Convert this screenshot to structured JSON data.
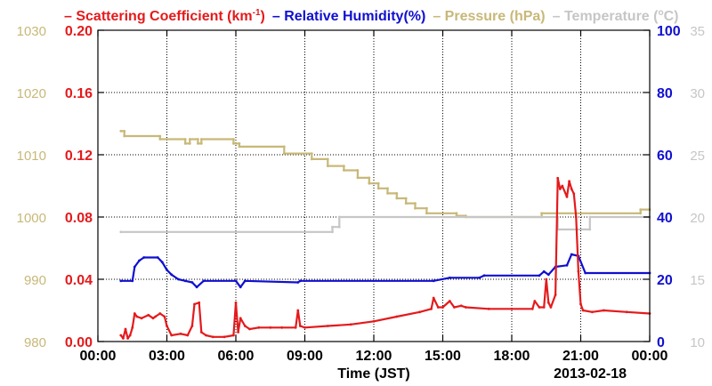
{
  "chart_data": {
    "type": "line",
    "legend": {
      "placement": "top",
      "entries": [
        {
          "key": "scattering",
          "label_main": "Scattering Coefficient (km",
          "label_sup": "-1",
          "label_end": ")"
        },
        {
          "key": "rh",
          "label_main": "Relative Humidity(%)",
          "label_sup": "",
          "label_end": ""
        },
        {
          "key": "pressure",
          "label_main": "Pressure (hPa)",
          "label_sup": "",
          "label_end": ""
        },
        {
          "key": "temperature",
          "label_main": "Temperature (",
          "label_sup": "o",
          "label_end": "C)"
        }
      ]
    },
    "xlabel": "Time (JST)",
    "date_label": "2013-02-18",
    "x_unit": "hours",
    "xlim": [
      0,
      24
    ],
    "x_ticks": [
      0,
      3,
      6,
      9,
      12,
      15,
      18,
      21,
      24
    ],
    "x_tick_labels": [
      "00:00",
      "03:00",
      "06:00",
      "09:00",
      "12:00",
      "15:00",
      "18:00",
      "21:00",
      "00:00"
    ],
    "grid": true,
    "axes": {
      "pressure": {
        "side": "left-outer",
        "ylim": [
          980,
          1030
        ],
        "ticks": [
          980,
          990,
          1000,
          1010,
          1020,
          1030
        ]
      },
      "scattering": {
        "side": "left-inner",
        "ylim": [
          0.0,
          0.2
        ],
        "ticks": [
          0.0,
          0.04,
          0.08,
          0.12,
          0.16,
          0.2
        ],
        "tick_labels": [
          "0.00",
          "0.04",
          "0.08",
          "0.12",
          "0.16",
          "0.20"
        ]
      },
      "rh": {
        "side": "right-inner",
        "ylim": [
          0,
          100
        ],
        "ticks": [
          0,
          20,
          40,
          60,
          80,
          100
        ]
      },
      "temperature": {
        "side": "right-outer",
        "ylim": [
          10,
          35
        ],
        "ticks": [
          10,
          15,
          20,
          25,
          30,
          35
        ]
      }
    },
    "colors": {
      "scattering": "#e41a1c",
      "rh": "#1010d0",
      "pressure": "#c8b878",
      "temperature": "#c6c6c6",
      "grid": "#000000"
    },
    "series": [
      {
        "key": "pressure",
        "name": "Pressure (hPa)",
        "x": [
          1.0,
          1.15,
          1.15,
          2.7,
          2.7,
          3.8,
          3.8,
          4.0,
          4.0,
          4.35,
          4.35,
          4.5,
          4.5,
          5.9,
          5.9,
          6.15,
          6.15,
          8.1,
          8.1,
          9.3,
          9.3,
          10.0,
          10.0,
          10.7,
          10.7,
          11.3,
          11.3,
          11.8,
          11.8,
          12.2,
          12.2,
          12.6,
          12.6,
          13.0,
          13.0,
          13.4,
          13.4,
          13.8,
          13.8,
          14.3,
          14.3,
          15.6,
          15.6,
          16.0,
          16.0,
          19.3,
          19.3,
          23.6,
          23.6,
          24.0
        ],
        "y": [
          1013.8,
          1013.8,
          1013.0,
          1013.0,
          1012.5,
          1012.5,
          1011.8,
          1011.8,
          1012.5,
          1012.5,
          1011.8,
          1011.8,
          1012.5,
          1012.5,
          1011.8,
          1011.8,
          1011.3,
          1011.3,
          1010.2,
          1010.2,
          1009.3,
          1009.3,
          1008.2,
          1008.2,
          1007.5,
          1007.5,
          1006.3,
          1006.3,
          1005.4,
          1005.4,
          1004.6,
          1004.6,
          1003.8,
          1003.8,
          1003.0,
          1003.0,
          1002.2,
          1002.2,
          1001.4,
          1001.4,
          1000.6,
          1000.6,
          1000.2,
          1000.2,
          1000.0,
          1000.0,
          1000.6,
          1000.6,
          1001.2,
          1001.2
        ]
      },
      {
        "key": "temperature",
        "name": "Temperature (oC)",
        "x": [
          1.0,
          10.2,
          10.2,
          10.5,
          10.5,
          20.0,
          20.0,
          21.4,
          21.4,
          24.0
        ],
        "y": [
          18.8,
          18.8,
          19.2,
          19.2,
          20.0,
          20.0,
          19.0,
          19.0,
          20.0,
          20.0
        ]
      },
      {
        "key": "rh",
        "name": "Relative Humidity(%)",
        "x": [
          1.0,
          1.5,
          1.6,
          1.8,
          2.0,
          2.6,
          2.8,
          3.0,
          3.2,
          3.5,
          3.8,
          4.1,
          4.3,
          4.6,
          6.0,
          6.2,
          6.4,
          8.7,
          8.8,
          14.6,
          15.3,
          16.6,
          16.8,
          19.2,
          19.4,
          19.6,
          19.9,
          20.4,
          20.6,
          20.9,
          21.2,
          24.0
        ],
        "y": [
          19.5,
          19.5,
          24.0,
          26.0,
          27.0,
          27.0,
          25.5,
          23.0,
          21.5,
          20.0,
          19.5,
          19.0,
          17.5,
          19.5,
          19.5,
          17.5,
          19.5,
          19.0,
          19.5,
          19.5,
          20.5,
          20.5,
          21.2,
          21.2,
          22.5,
          21.5,
          24.0,
          24.5,
          28.0,
          27.5,
          22.0,
          22.0
        ]
      },
      {
        "key": "scattering",
        "name": "Scattering Coefficient (km-1)",
        "x": [
          1.0,
          1.1,
          1.2,
          1.3,
          1.4,
          1.5,
          1.6,
          1.7,
          1.9,
          2.2,
          2.4,
          2.5,
          2.7,
          2.9,
          3.0,
          3.2,
          3.6,
          3.9,
          4.1,
          4.2,
          4.4,
          4.5,
          4.7,
          5.0,
          5.5,
          5.9,
          6.0,
          6.1,
          6.2,
          6.4,
          6.6,
          7.0,
          7.5,
          8.0,
          8.6,
          8.7,
          8.8,
          9.0,
          10.0,
          11.0,
          12.0,
          13.0,
          14.0,
          14.5,
          14.6,
          14.8,
          15.0,
          15.3,
          15.5,
          15.8,
          16.0,
          17.0,
          18.0,
          18.9,
          19.0,
          19.2,
          19.4,
          19.5,
          19.6,
          19.7,
          19.9,
          20.0,
          20.1,
          20.2,
          20.4,
          20.5,
          20.6,
          20.7,
          20.8,
          20.9,
          21.0,
          21.1,
          21.5,
          22.0,
          23.0,
          24.0
        ],
        "y": [
          0.004,
          0.002,
          0.008,
          0.002,
          0.004,
          0.009,
          0.018,
          0.016,
          0.015,
          0.017,
          0.015,
          0.016,
          0.018,
          0.016,
          0.01,
          0.004,
          0.005,
          0.004,
          0.01,
          0.024,
          0.025,
          0.006,
          0.004,
          0.003,
          0.003,
          0.004,
          0.025,
          0.006,
          0.015,
          0.01,
          0.008,
          0.009,
          0.009,
          0.009,
          0.009,
          0.02,
          0.01,
          0.009,
          0.01,
          0.011,
          0.013,
          0.016,
          0.019,
          0.021,
          0.028,
          0.022,
          0.022,
          0.026,
          0.022,
          0.023,
          0.022,
          0.021,
          0.021,
          0.021,
          0.026,
          0.022,
          0.022,
          0.04,
          0.025,
          0.022,
          0.03,
          0.105,
          0.098,
          0.1,
          0.093,
          0.103,
          0.098,
          0.095,
          0.08,
          0.045,
          0.024,
          0.02,
          0.019,
          0.02,
          0.019,
          0.018
        ]
      }
    ]
  }
}
